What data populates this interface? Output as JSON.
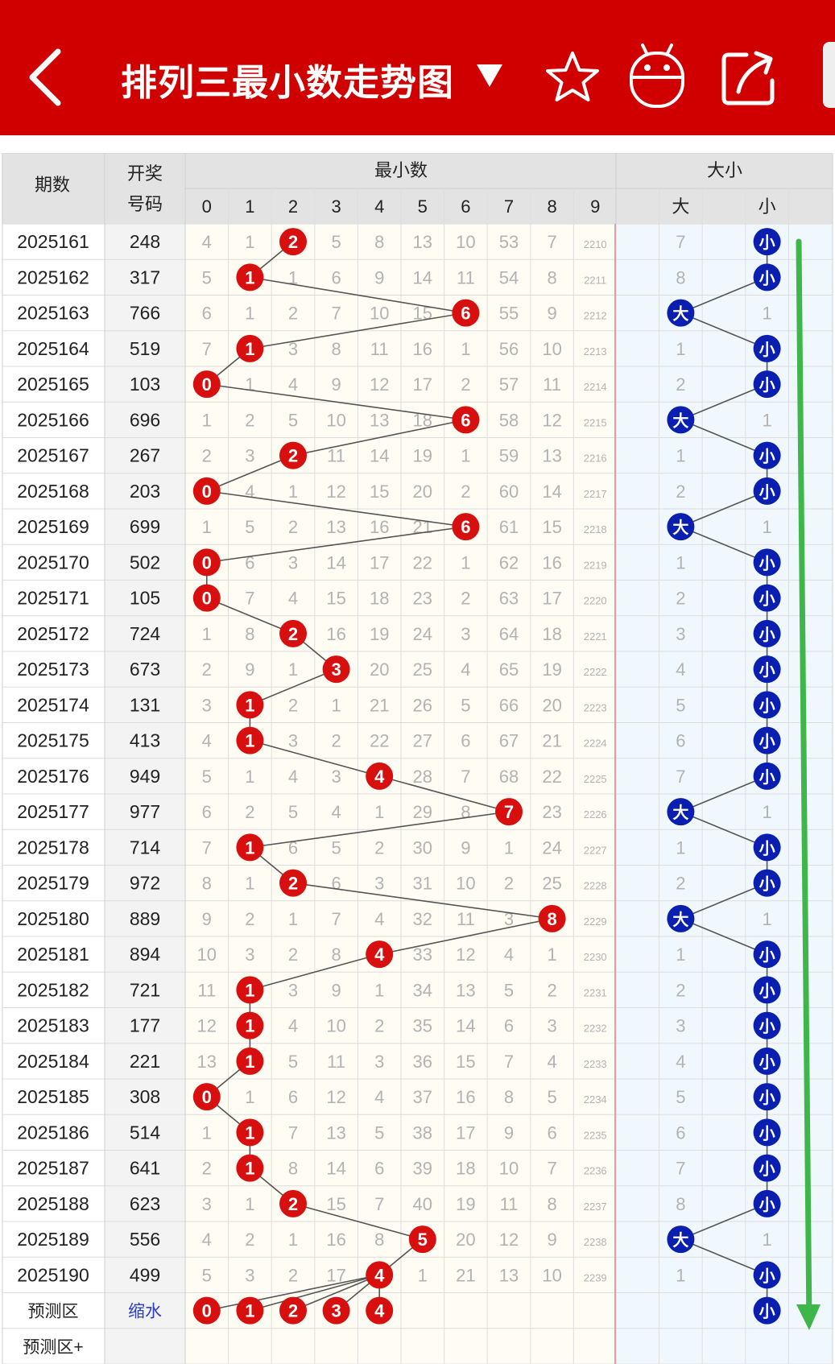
{
  "header": {
    "title": "排列三最小数走势图",
    "title_dropdown_icon": "triangle-down-icon",
    "back_icon": "chevron-left-icon",
    "favorite_icon": "star-outline-icon",
    "robot_icon": "robot-icon",
    "share_icon": "share-icon",
    "colors": {
      "bar": "#d00000"
    }
  },
  "table": {
    "col_period": "期数",
    "col_number_line1": "开奖",
    "col_number_line2": "号码",
    "group_min": "最小数",
    "group_size": "大小",
    "min_digits": [
      "0",
      "1",
      "2",
      "3",
      "4",
      "5",
      "6",
      "7",
      "8",
      "9"
    ],
    "size_labels": [
      "",
      "大",
      "",
      "小",
      ""
    ],
    "big_label": "大",
    "small_label": "小",
    "rows": [
      {
        "period": "2025161",
        "number": "248",
        "min": 2,
        "miss": [
          "4",
          "1",
          "",
          "5",
          "8",
          "13",
          "10",
          "53",
          "7",
          "2210"
        ],
        "size": "小",
        "size_miss": [
          "",
          "7",
          "",
          "",
          ""
        ]
      },
      {
        "period": "2025162",
        "number": "317",
        "min": 1,
        "miss": [
          "5",
          "",
          "1",
          "6",
          "9",
          "14",
          "11",
          "54",
          "8",
          "2211"
        ],
        "size": "小",
        "size_miss": [
          "",
          "8",
          "",
          "",
          ""
        ]
      },
      {
        "period": "2025163",
        "number": "766",
        "min": 6,
        "miss": [
          "6",
          "1",
          "2",
          "7",
          "10",
          "15",
          "",
          "55",
          "9",
          "2212"
        ],
        "size": "大",
        "size_miss": [
          "",
          "",
          "",
          "1",
          ""
        ]
      },
      {
        "period": "2025164",
        "number": "519",
        "min": 1,
        "miss": [
          "7",
          "",
          "3",
          "8",
          "11",
          "16",
          "1",
          "56",
          "10",
          "2213"
        ],
        "size": "小",
        "size_miss": [
          "",
          "1",
          "",
          "",
          ""
        ]
      },
      {
        "period": "2025165",
        "number": "103",
        "min": 0,
        "miss": [
          "",
          "1",
          "4",
          "9",
          "12",
          "17",
          "2",
          "57",
          "11",
          "2214"
        ],
        "size": "小",
        "size_miss": [
          "",
          "2",
          "",
          "",
          ""
        ]
      },
      {
        "period": "2025166",
        "number": "696",
        "min": 6,
        "miss": [
          "1",
          "2",
          "5",
          "10",
          "13",
          "18",
          "",
          "58",
          "12",
          "2215"
        ],
        "size": "大",
        "size_miss": [
          "",
          "",
          "",
          "1",
          ""
        ]
      },
      {
        "period": "2025167",
        "number": "267",
        "min": 2,
        "miss": [
          "2",
          "3",
          "",
          "11",
          "14",
          "19",
          "1",
          "59",
          "13",
          "2216"
        ],
        "size": "小",
        "size_miss": [
          "",
          "1",
          "",
          "",
          ""
        ]
      },
      {
        "period": "2025168",
        "number": "203",
        "min": 0,
        "miss": [
          "",
          "4",
          "1",
          "12",
          "15",
          "20",
          "2",
          "60",
          "14",
          "2217"
        ],
        "size": "小",
        "size_miss": [
          "",
          "2",
          "",
          "",
          ""
        ]
      },
      {
        "period": "2025169",
        "number": "699",
        "min": 6,
        "miss": [
          "1",
          "5",
          "2",
          "13",
          "16",
          "21",
          "",
          "61",
          "15",
          "2218"
        ],
        "size": "大",
        "size_miss": [
          "",
          "",
          "",
          "1",
          ""
        ]
      },
      {
        "period": "2025170",
        "number": "502",
        "min": 0,
        "miss": [
          "",
          "6",
          "3",
          "14",
          "17",
          "22",
          "1",
          "62",
          "16",
          "2219"
        ],
        "size": "小",
        "size_miss": [
          "",
          "1",
          "",
          "",
          ""
        ]
      },
      {
        "period": "2025171",
        "number": "105",
        "min": 0,
        "miss": [
          "",
          "7",
          "4",
          "15",
          "18",
          "23",
          "2",
          "63",
          "17",
          "2220"
        ],
        "size": "小",
        "size_miss": [
          "",
          "2",
          "",
          "",
          ""
        ]
      },
      {
        "period": "2025172",
        "number": "724",
        "min": 2,
        "miss": [
          "1",
          "8",
          "",
          "16",
          "19",
          "24",
          "3",
          "64",
          "18",
          "2221"
        ],
        "size": "小",
        "size_miss": [
          "",
          "3",
          "",
          "",
          ""
        ]
      },
      {
        "period": "2025173",
        "number": "673",
        "min": 3,
        "miss": [
          "2",
          "9",
          "1",
          "",
          "20",
          "25",
          "4",
          "65",
          "19",
          "2222"
        ],
        "size": "小",
        "size_miss": [
          "",
          "4",
          "",
          "",
          ""
        ]
      },
      {
        "period": "2025174",
        "number": "131",
        "min": 1,
        "miss": [
          "3",
          "",
          "2",
          "1",
          "21",
          "26",
          "5",
          "66",
          "20",
          "2223"
        ],
        "size": "小",
        "size_miss": [
          "",
          "5",
          "",
          "",
          ""
        ]
      },
      {
        "period": "2025175",
        "number": "413",
        "min": 1,
        "miss": [
          "4",
          "",
          "3",
          "2",
          "22",
          "27",
          "6",
          "67",
          "21",
          "2224"
        ],
        "size": "小",
        "size_miss": [
          "",
          "6",
          "",
          "",
          ""
        ]
      },
      {
        "period": "2025176",
        "number": "949",
        "min": 4,
        "miss": [
          "5",
          "1",
          "4",
          "3",
          "",
          "28",
          "7",
          "68",
          "22",
          "2225"
        ],
        "size": "小",
        "size_miss": [
          "",
          "7",
          "",
          "",
          ""
        ]
      },
      {
        "period": "2025177",
        "number": "977",
        "min": 7,
        "miss": [
          "6",
          "2",
          "5",
          "4",
          "1",
          "29",
          "8",
          "",
          "23",
          "2226"
        ],
        "size": "大",
        "size_miss": [
          "",
          "",
          "",
          "1",
          ""
        ]
      },
      {
        "period": "2025178",
        "number": "714",
        "min": 1,
        "miss": [
          "7",
          "",
          "6",
          "5",
          "2",
          "30",
          "9",
          "1",
          "24",
          "2227"
        ],
        "size": "小",
        "size_miss": [
          "",
          "1",
          "",
          "",
          ""
        ]
      },
      {
        "period": "2025179",
        "number": "972",
        "min": 2,
        "miss": [
          "8",
          "1",
          "",
          "6",
          "3",
          "31",
          "10",
          "2",
          "25",
          "2228"
        ],
        "size": "小",
        "size_miss": [
          "",
          "2",
          "",
          "",
          ""
        ]
      },
      {
        "period": "2025180",
        "number": "889",
        "min": 8,
        "miss": [
          "9",
          "2",
          "1",
          "7",
          "4",
          "32",
          "11",
          "3",
          "",
          "2229"
        ],
        "size": "大",
        "size_miss": [
          "",
          "",
          "",
          "1",
          ""
        ]
      },
      {
        "period": "2025181",
        "number": "894",
        "min": 4,
        "miss": [
          "10",
          "3",
          "2",
          "8",
          "",
          "33",
          "12",
          "4",
          "1",
          "2230"
        ],
        "size": "小",
        "size_miss": [
          "",
          "1",
          "",
          "",
          ""
        ]
      },
      {
        "period": "2025182",
        "number": "721",
        "min": 1,
        "miss": [
          "11",
          "",
          "3",
          "9",
          "1",
          "34",
          "13",
          "5",
          "2",
          "2231"
        ],
        "size": "小",
        "size_miss": [
          "",
          "2",
          "",
          "",
          ""
        ]
      },
      {
        "period": "2025183",
        "number": "177",
        "min": 1,
        "miss": [
          "12",
          "",
          "4",
          "10",
          "2",
          "35",
          "14",
          "6",
          "3",
          "2232"
        ],
        "size": "小",
        "size_miss": [
          "",
          "3",
          "",
          "",
          ""
        ]
      },
      {
        "period": "2025184",
        "number": "221",
        "min": 1,
        "miss": [
          "13",
          "",
          "5",
          "11",
          "3",
          "36",
          "15",
          "7",
          "4",
          "2233"
        ],
        "size": "小",
        "size_miss": [
          "",
          "4",
          "",
          "",
          ""
        ]
      },
      {
        "period": "2025185",
        "number": "308",
        "min": 0,
        "miss": [
          "",
          "1",
          "6",
          "12",
          "4",
          "37",
          "16",
          "8",
          "5",
          "2234"
        ],
        "size": "小",
        "size_miss": [
          "",
          "5",
          "",
          "",
          ""
        ]
      },
      {
        "period": "2025186",
        "number": "514",
        "min": 1,
        "miss": [
          "1",
          "",
          "7",
          "13",
          "5",
          "38",
          "17",
          "9",
          "6",
          "2235"
        ],
        "size": "小",
        "size_miss": [
          "",
          "6",
          "",
          "",
          ""
        ]
      },
      {
        "period": "2025187",
        "number": "641",
        "min": 1,
        "miss": [
          "2",
          "",
          "8",
          "14",
          "6",
          "39",
          "18",
          "10",
          "7",
          "2236"
        ],
        "size": "小",
        "size_miss": [
          "",
          "7",
          "",
          "",
          ""
        ]
      },
      {
        "period": "2025188",
        "number": "623",
        "min": 2,
        "miss": [
          "3",
          "1",
          "",
          "15",
          "7",
          "40",
          "19",
          "11",
          "8",
          "2237"
        ],
        "size": "小",
        "size_miss": [
          "",
          "8",
          "",
          "",
          ""
        ]
      },
      {
        "period": "2025189",
        "number": "556",
        "min": 5,
        "miss": [
          "4",
          "2",
          "1",
          "16",
          "8",
          "",
          "20",
          "12",
          "9",
          "2238"
        ],
        "size": "大",
        "size_miss": [
          "",
          "",
          "",
          "1",
          ""
        ]
      },
      {
        "period": "2025190",
        "number": "499",
        "min": 4,
        "miss": [
          "5",
          "3",
          "2",
          "17",
          "",
          "1",
          "21",
          "13",
          "10",
          "2239"
        ],
        "size": "小",
        "size_miss": [
          "",
          "1",
          "",
          "",
          ""
        ]
      }
    ],
    "forecast": {
      "label": "预测区",
      "action": "缩水",
      "balls": [
        "0",
        "1",
        "2",
        "3",
        "4"
      ],
      "size": "小"
    },
    "forecast_plus": {
      "label": "预测区+"
    }
  },
  "colors": {
    "red_ball": "#d70f0f",
    "blue_ball": "#0a1fb0",
    "miss_text": "#b3b3b3",
    "header_bg": "#e3e3e3",
    "min_area_bg": "#fefcf3",
    "size_area_bg": "#f0f8fd",
    "trend_arrow": "#3fb64a",
    "link_blue": "#2c3cc4"
  },
  "trend_arrow_icon": "arrow-down-icon"
}
